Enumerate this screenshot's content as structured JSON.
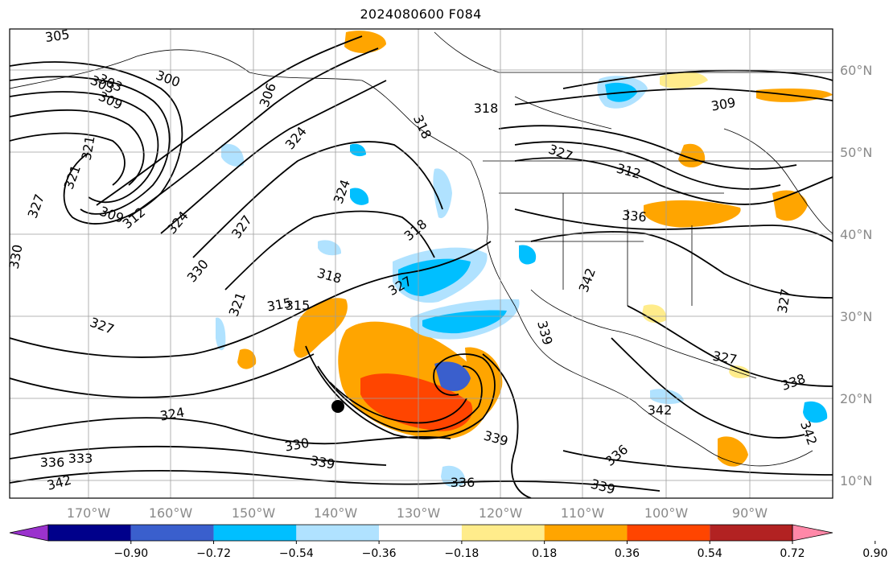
{
  "title": "2024080600 F084",
  "map": {
    "lon_labels": [
      "170°W",
      "160°W",
      "150°W",
      "140°W",
      "130°W",
      "120°W",
      "110°W",
      "100°W",
      "90°W"
    ],
    "lat_labels": [
      "60°N",
      "50°N",
      "40°N",
      "30°N",
      "20°N",
      "10°N"
    ],
    "contour_labels": [
      "305",
      "303",
      "300",
      "309",
      "306",
      "324",
      "318",
      "318",
      "315",
      "318",
      "312",
      "336",
      "309",
      "327",
      "321",
      "312",
      "324",
      "327",
      "309",
      "321",
      "327",
      "330",
      "318",
      "327",
      "342",
      "327",
      "315",
      "321",
      "330",
      "339",
      "342",
      "303",
      "324",
      "324",
      "327",
      "339",
      "330",
      "333",
      "336",
      "336",
      "339",
      "342",
      "336",
      "339",
      "342",
      "327",
      "338"
    ],
    "colors": {
      "ocean": "#ffffff",
      "contour": "#000000",
      "border": "#000000",
      "grid": "#9e9e9e"
    }
  },
  "colorbar": {
    "ticks": [
      "−0.90",
      "−0.72",
      "−0.54",
      "−0.36",
      "−0.18",
      "0.18",
      "0.36",
      "0.54",
      "0.72",
      "0.90"
    ],
    "colors": [
      "#9a32cd",
      "#00008b",
      "#3a5fcd",
      "#00bfff",
      "#b0e2ff",
      "#ffffff",
      "#ffec8b",
      "#ffa500",
      "#ff4500",
      "#b22222",
      "#ff88a8"
    ]
  }
}
